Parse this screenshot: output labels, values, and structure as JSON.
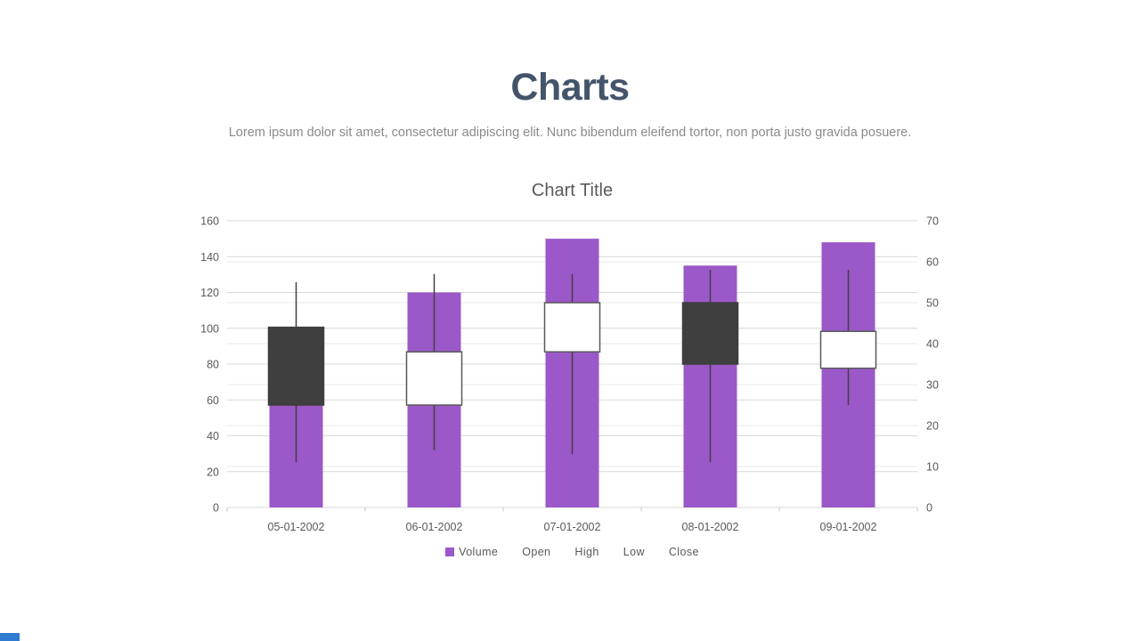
{
  "header": {
    "title": "Charts",
    "subtitle": "Lorem ipsum dolor sit amet, consectetur adipiscing elit. Nunc bibendum eleifend tortor, non porta justo gravida posuere."
  },
  "chart_data": {
    "type": "stock",
    "subtype": "volume-open-high-low-close",
    "title": "Chart Title",
    "categories": [
      "05-01-2002",
      "06-01-2002",
      "07-01-2002",
      "08-01-2002",
      "09-01-2002"
    ],
    "series": [
      {
        "name": "Volume",
        "axis": "left",
        "values": [
          57,
          120,
          150,
          135,
          148
        ]
      },
      {
        "name": "Open",
        "axis": "right",
        "values": [
          44,
          25,
          38,
          50,
          34
        ]
      },
      {
        "name": "High",
        "axis": "right",
        "values": [
          55,
          57,
          57,
          58,
          58
        ]
      },
      {
        "name": "Low",
        "axis": "right",
        "values": [
          11,
          14,
          13,
          11,
          25
        ]
      },
      {
        "name": "Close",
        "axis": "right",
        "values": [
          25,
          38,
          50,
          35,
          43
        ]
      }
    ],
    "left_axis": {
      "min": 0,
      "max": 160,
      "step": 20
    },
    "right_axis": {
      "min": 0,
      "max": 70,
      "step": 10
    },
    "legend": [
      "Volume",
      "Open",
      "High",
      "Low",
      "Close"
    ],
    "legend_position": "bottom",
    "grid": true,
    "colors": {
      "volume_bar": "#9B58C8",
      "up_candle_fill": "#FFFFFF",
      "up_candle_border": "#595959",
      "down_candle_fill": "#3F3F3F",
      "down_candle_border": "#3F3F3F",
      "wick": "#404040",
      "gridline_major": "#D9D9D9",
      "gridline_minor": "#EAEAEA",
      "axis_line": "#D9D9D9",
      "tick_mark": "#C9C9C9",
      "axis_text": "#595959"
    }
  },
  "text_colors": {
    "title": "#44546A",
    "subtitle": "#8A8A8A",
    "chart_title": "#595959"
  },
  "decor": {
    "corner_bar_color": "#2E7BCF"
  }
}
